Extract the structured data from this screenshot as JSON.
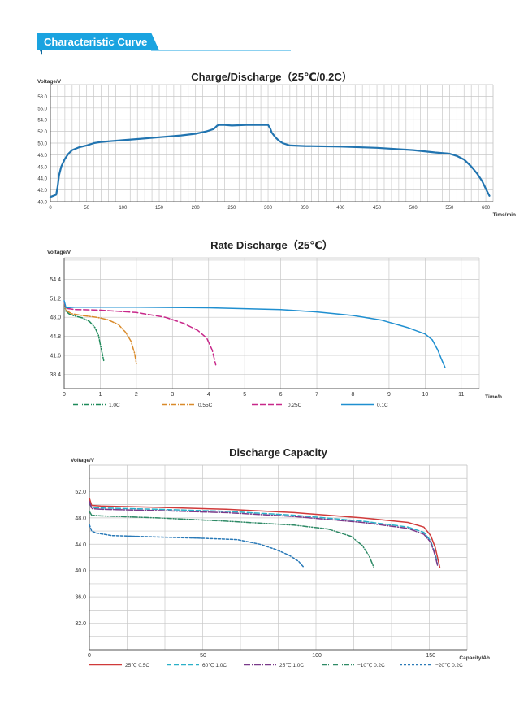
{
  "header": {
    "title": "Characteristic Curve",
    "colors": {
      "banner": "#1aa3e0",
      "banner_dark": "#0c6aa0"
    }
  },
  "chart_data": [
    {
      "id": "charge-discharge",
      "type": "line",
      "title": "Charge/Discharge（25℃/0.2C）",
      "ylabel": "Voltage/V",
      "xlabel": "Time/min",
      "xlim": [
        0,
        610
      ],
      "ylim": [
        40,
        60
      ],
      "x_ticks": [
        0,
        50,
        100,
        150,
        200,
        250,
        300,
        350,
        400,
        450,
        500,
        550,
        600
      ],
      "x_tick_labels": [
        "0",
        "50",
        "100",
        "150",
        "200",
        "250",
        "300",
        "350",
        "400",
        "450",
        "500",
        "550",
        "600"
      ],
      "y_ticks": [
        40,
        42,
        44,
        46,
        48,
        50,
        52,
        54,
        56,
        58
      ],
      "y_tick_labels": [
        "40.0",
        "42.0",
        "44.0",
        "46.0",
        "48.0",
        "50.0",
        "52.0",
        "54.0",
        "56.0",
        "58.0"
      ],
      "grid_x_step": 10,
      "grid_y_step": 2,
      "series": [
        {
          "name": "Charge/Discharge",
          "color": "#2174b0",
          "dash": "",
          "x": [
            0,
            4,
            8,
            10,
            12,
            15,
            20,
            25,
            30,
            40,
            50,
            60,
            70,
            80,
            100,
            120,
            150,
            180,
            200,
            215,
            225,
            230,
            232,
            240,
            250,
            270,
            290,
            300,
            303,
            305,
            310,
            315,
            320,
            330,
            350,
            400,
            450,
            500,
            530,
            550,
            560,
            570,
            580,
            588,
            595,
            600,
            605
          ],
          "y": [
            40.8,
            41.0,
            41.2,
            42.5,
            44.5,
            46.0,
            47.3,
            48.2,
            48.8,
            49.3,
            49.6,
            50.0,
            50.2,
            50.3,
            50.5,
            50.7,
            51.0,
            51.3,
            51.6,
            52.0,
            52.4,
            53.0,
            53.1,
            53.1,
            53.0,
            53.1,
            53.1,
            53.1,
            52.5,
            51.8,
            51.0,
            50.4,
            50.0,
            49.6,
            49.5,
            49.4,
            49.2,
            48.8,
            48.4,
            48.2,
            47.8,
            47.2,
            46.0,
            44.8,
            43.5,
            42.2,
            41.0
          ]
        }
      ]
    },
    {
      "id": "rate-discharge",
      "type": "line",
      "title": "Rate Discharge（25℃）",
      "ylabel": "Voltage/V",
      "xlabel": "Time/h",
      "xlim": [
        0,
        11.5
      ],
      "ylim": [
        36,
        58
      ],
      "x_ticks": [
        0,
        1,
        2,
        3,
        4,
        5,
        6,
        7,
        8,
        9,
        10,
        11
      ],
      "x_tick_labels": [
        "0",
        "1",
        "2",
        "3",
        "4",
        "5",
        "6",
        "7",
        "8",
        "9",
        "10",
        "11"
      ],
      "y_ticks": [
        38.4,
        41.6,
        44.8,
        48.0,
        51.2,
        54.4
      ],
      "y_tick_labels": [
        "38.4",
        "41.6",
        "44.8",
        "48.0",
        "51.2",
        "54.4"
      ],
      "grid_x_step": 1,
      "grid_y_step": 3.2,
      "grid_y_start": 35.2,
      "series": [
        {
          "name": "1.0C",
          "color": "#1e8a5a",
          "dash": "6,2,1,2,1,2",
          "x": [
            0,
            0.05,
            0.15,
            0.3,
            0.5,
            0.7,
            0.85,
            0.95,
            1.0,
            1.05,
            1.1
          ],
          "y": [
            50.6,
            49.0,
            48.5,
            48.2,
            47.9,
            47.3,
            46.3,
            45.0,
            43.5,
            42.0,
            40.6
          ]
        },
        {
          "name": "0.55C",
          "color": "#d98a2a",
          "dash": "6,2,1,2",
          "x": [
            0,
            0.05,
            0.2,
            0.5,
            0.9,
            1.2,
            1.5,
            1.7,
            1.85,
            1.95,
            2.0
          ],
          "y": [
            50.6,
            49.2,
            48.6,
            48.3,
            48.0,
            47.6,
            46.8,
            45.5,
            44.0,
            42.0,
            40.2
          ]
        },
        {
          "name": "0.25C",
          "color": "#c8288a",
          "dash": "7,3",
          "x": [
            0,
            0.05,
            0.3,
            1.0,
            2.0,
            2.8,
            3.3,
            3.7,
            3.95,
            4.1,
            4.2
          ],
          "y": [
            50.6,
            49.5,
            49.3,
            49.2,
            48.8,
            48.0,
            47.0,
            45.8,
            44.5,
            42.5,
            40.0
          ]
        },
        {
          "name": "0.1C",
          "color": "#1f8fd0",
          "dash": "",
          "x": [
            0,
            0.05,
            0.3,
            2,
            4,
            6,
            7,
            8,
            8.8,
            9.5,
            10.0,
            10.2,
            10.35,
            10.45,
            10.55
          ],
          "y": [
            50.8,
            49.6,
            49.7,
            49.7,
            49.6,
            49.3,
            48.9,
            48.3,
            47.5,
            46.3,
            45.2,
            44.2,
            42.5,
            41.0,
            39.6
          ]
        }
      ]
    },
    {
      "id": "discharge-capacity",
      "type": "line",
      "title": "Discharge Capacity",
      "ylabel": "Voltage/V",
      "xlabel": "Capacity/Ah",
      "xlim": [
        0,
        166
      ],
      "ylim": [
        28,
        56
      ],
      "x_ticks": [
        0,
        50,
        100,
        150
      ],
      "x_tick_labels": [
        "0",
        "50",
        "100",
        "150"
      ],
      "y_ticks": [
        32,
        36,
        40,
        44,
        48,
        52
      ],
      "y_tick_labels": [
        "32.0",
        "36.0",
        "40.0",
        "44.0",
        "48.0",
        "52.0"
      ],
      "grid_x_step": 16.6,
      "grid_y_step": 2,
      "series": [
        {
          "name": "25℃ 0.5C",
          "color": "#d03a3a",
          "dash": "",
          "x": [
            0,
            1,
            5,
            30,
            60,
            90,
            120,
            140,
            147,
            150,
            152,
            153,
            154
          ],
          "y": [
            51.0,
            49.9,
            49.8,
            49.6,
            49.3,
            48.8,
            48.0,
            47.3,
            46.6,
            45.3,
            43.5,
            42.0,
            40.5
          ]
        },
        {
          "name": "60℃ 1.0C",
          "color": "#2ab0c8",
          "dash": "6,3",
          "x": [
            0,
            1,
            5,
            30,
            60,
            90,
            120,
            140,
            147,
            150,
            151.5,
            152.5,
            153
          ],
          "y": [
            50.3,
            49.6,
            49.5,
            49.3,
            49.0,
            48.4,
            47.5,
            46.6,
            45.8,
            44.5,
            43.0,
            41.8,
            41.0
          ]
        },
        {
          "name": "25℃ 1.0C",
          "color": "#7a3a8a",
          "dash": "8,2,1,2",
          "x": [
            0,
            1,
            5,
            30,
            60,
            90,
            120,
            140,
            147,
            150,
            151.5,
            152.5,
            153
          ],
          "y": [
            50.5,
            49.4,
            49.3,
            49.1,
            48.8,
            48.2,
            47.3,
            46.4,
            45.5,
            44.3,
            42.8,
            41.5,
            40.8
          ]
        },
        {
          "name": "−10℃ 0.2C",
          "color": "#2e8a66",
          "dash": "6,2,1,2,1,2",
          "x": [
            0,
            1,
            5,
            30,
            60,
            90,
            105,
            115,
            120,
            123,
            125
          ],
          "y": [
            49.0,
            48.4,
            48.3,
            48.0,
            47.5,
            46.9,
            46.3,
            45.2,
            43.8,
            42.2,
            40.5
          ]
        },
        {
          "name": "−20℃ 0.2C",
          "color": "#2a7ab8",
          "dash": "3,2",
          "x": [
            0,
            1,
            3,
            10,
            30,
            50,
            65,
            75,
            82,
            88,
            92,
            94
          ],
          "y": [
            47.0,
            46.0,
            45.7,
            45.3,
            45.1,
            44.9,
            44.7,
            44.0,
            43.2,
            42.3,
            41.4,
            40.6
          ]
        }
      ]
    }
  ]
}
